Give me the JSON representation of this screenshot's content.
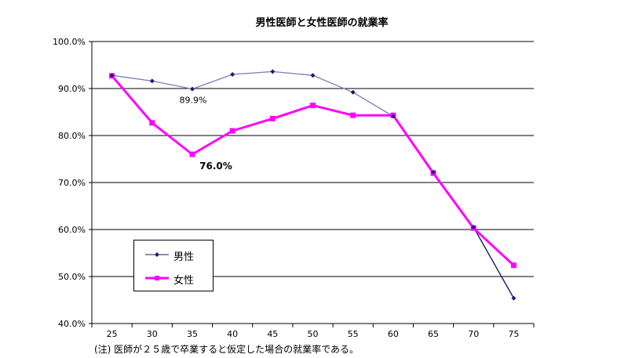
{
  "chart_data": {
    "type": "line",
    "title": "男性医師と女性医師の就業率",
    "note": "(注) 医師が２５歳で卒業すると仮定した場合の就業率である。",
    "categories": [
      "25",
      "30",
      "35",
      "40",
      "45",
      "50",
      "55",
      "60",
      "65",
      "70",
      "75"
    ],
    "y_ticks": [
      "40.0%",
      "50.0%",
      "60.0%",
      "70.0%",
      "80.0%",
      "90.0%",
      "100.0%"
    ],
    "ylim": [
      40,
      100
    ],
    "grid": true,
    "legend_position": "bottom-left",
    "series": [
      {
        "name": "男性",
        "color": "#7b7bbd",
        "marker": "diamond",
        "values": [
          92.8,
          91.6,
          89.9,
          93.0,
          93.6,
          92.8,
          89.2,
          84.1,
          72.2,
          60.5,
          45.4
        ]
      },
      {
        "name": "女性",
        "color": "#ff00ff",
        "marker": "square",
        "values": [
          92.7,
          82.7,
          76.0,
          81.0,
          83.6,
          86.4,
          84.3,
          84.3,
          72.0,
          60.3,
          52.4
        ]
      }
    ],
    "annotations": [
      {
        "series": 0,
        "index": 2,
        "text": "89.9%"
      },
      {
        "series": 1,
        "index": 2,
        "text": "76.0%"
      }
    ]
  }
}
